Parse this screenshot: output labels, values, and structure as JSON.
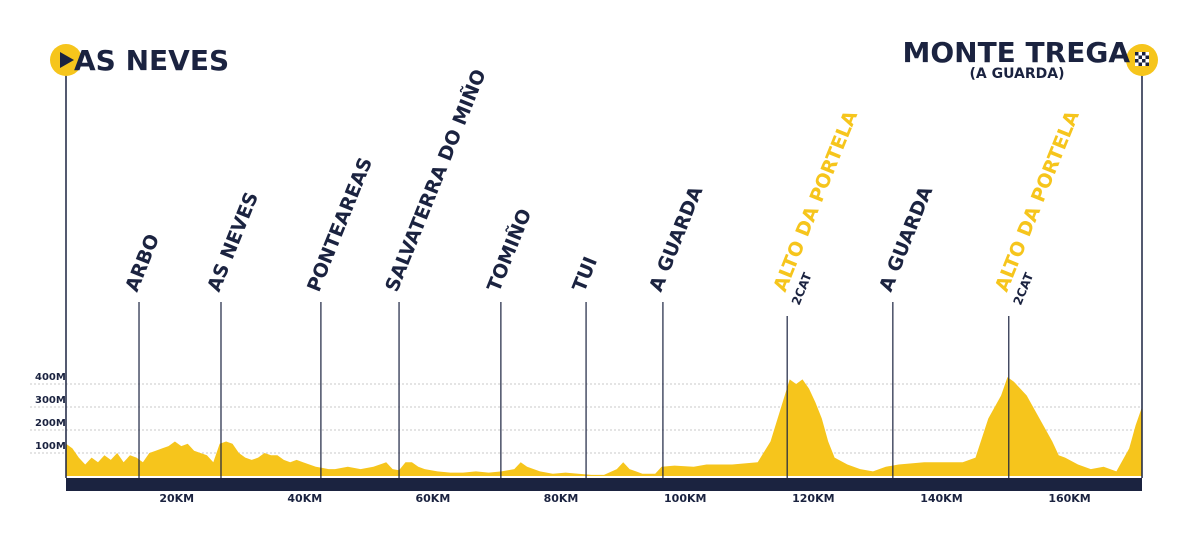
{
  "chart_data": {
    "type": "area",
    "start": "AS NEVES",
    "finish": "MONTE TREGA",
    "finish_note": "(A GUARDA)",
    "color": "#f6c51c",
    "climb_color": "#f6c51c",
    "text_color": "#1b2340",
    "grid": true,
    "xlim": [
      0,
      168
    ],
    "ylim": [
      0,
      450
    ],
    "xticks": [
      {
        "value": 20,
        "label": "20KM"
      },
      {
        "value": 40,
        "label": "40KM"
      },
      {
        "value": 60,
        "label": "60KM"
      },
      {
        "value": 80,
        "label": "80KM"
      },
      {
        "value": 100,
        "label": "100KM"
      },
      {
        "value": 120,
        "label": "120KM"
      },
      {
        "value": 140,
        "label": "140KM"
      },
      {
        "value": 160,
        "label": "160KM"
      }
    ],
    "yticks": [
      {
        "value": 100,
        "label": "100M"
      },
      {
        "value": 200,
        "label": "200M"
      },
      {
        "value": 300,
        "label": "300M"
      },
      {
        "value": 400,
        "label": "400M"
      }
    ],
    "waypoints": [
      {
        "name": "ARBO",
        "km": 11.4
      },
      {
        "name": "AS NEVES",
        "km": 24.2
      },
      {
        "name": "PONTEAREAS",
        "km": 39.8
      },
      {
        "name": "SALVATERRA DO MIÑO",
        "km": 52.0
      },
      {
        "name": "TOMIÑO",
        "km": 67.9
      },
      {
        "name": "TUI",
        "km": 81.2
      },
      {
        "name": "A GUARDA",
        "km": 93.2
      },
      {
        "name": "ALTO DA PORTELA",
        "km": 112.6,
        "category": "2CAT"
      },
      {
        "name": "A GUARDA",
        "km": 129.1
      },
      {
        "name": "ALTO DA PORTELA",
        "km": 147.2,
        "category": "2CAT"
      }
    ],
    "x": [
      0,
      1,
      2,
      3,
      4,
      5,
      6,
      7,
      8,
      9,
      10,
      11,
      12,
      13,
      14,
      15,
      16,
      17,
      18,
      19,
      20,
      21,
      22,
      23,
      24,
      25,
      26,
      27,
      28,
      29,
      30,
      31,
      32,
      33,
      34,
      35,
      36,
      37,
      38,
      39,
      40,
      41,
      42,
      44,
      46,
      48,
      50,
      51,
      52,
      53,
      54,
      55,
      56,
      58,
      60,
      62,
      64,
      66,
      68,
      69,
      70,
      71,
      72,
      74,
      76,
      78,
      80,
      82,
      84,
      86,
      87,
      88,
      90,
      92,
      93,
      95,
      98,
      100,
      104,
      108,
      110,
      112,
      113,
      114,
      115,
      116,
      117,
      118,
      119,
      120,
      122,
      124,
      126,
      128,
      130,
      134,
      138,
      140,
      142,
      144,
      146,
      147,
      148,
      149,
      150,
      151,
      152,
      153,
      154,
      155,
      156,
      158,
      160,
      162,
      164,
      166,
      167,
      168
    ],
    "values": [
      140,
      120,
      80,
      50,
      80,
      60,
      90,
      70,
      100,
      60,
      90,
      80,
      60,
      100,
      110,
      120,
      130,
      150,
      130,
      140,
      110,
      100,
      90,
      60,
      140,
      150,
      140,
      100,
      80,
      70,
      80,
      100,
      90,
      90,
      70,
      60,
      70,
      60,
      50,
      40,
      35,
      30,
      30,
      40,
      30,
      40,
      60,
      30,
      25,
      60,
      60,
      40,
      30,
      20,
      15,
      15,
      20,
      15,
      20,
      25,
      30,
      60,
      40,
      20,
      10,
      15,
      10,
      5,
      5,
      30,
      60,
      30,
      10,
      10,
      40,
      45,
      40,
      50,
      50,
      60,
      150,
      330,
      420,
      400,
      420,
      380,
      320,
      250,
      150,
      80,
      50,
      30,
      20,
      40,
      50,
      60,
      60,
      60,
      80,
      250,
      350,
      430,
      410,
      380,
      350,
      300,
      250,
      200,
      150,
      90,
      80,
      50,
      30,
      40,
      20,
      120,
      220,
      300
    ]
  }
}
